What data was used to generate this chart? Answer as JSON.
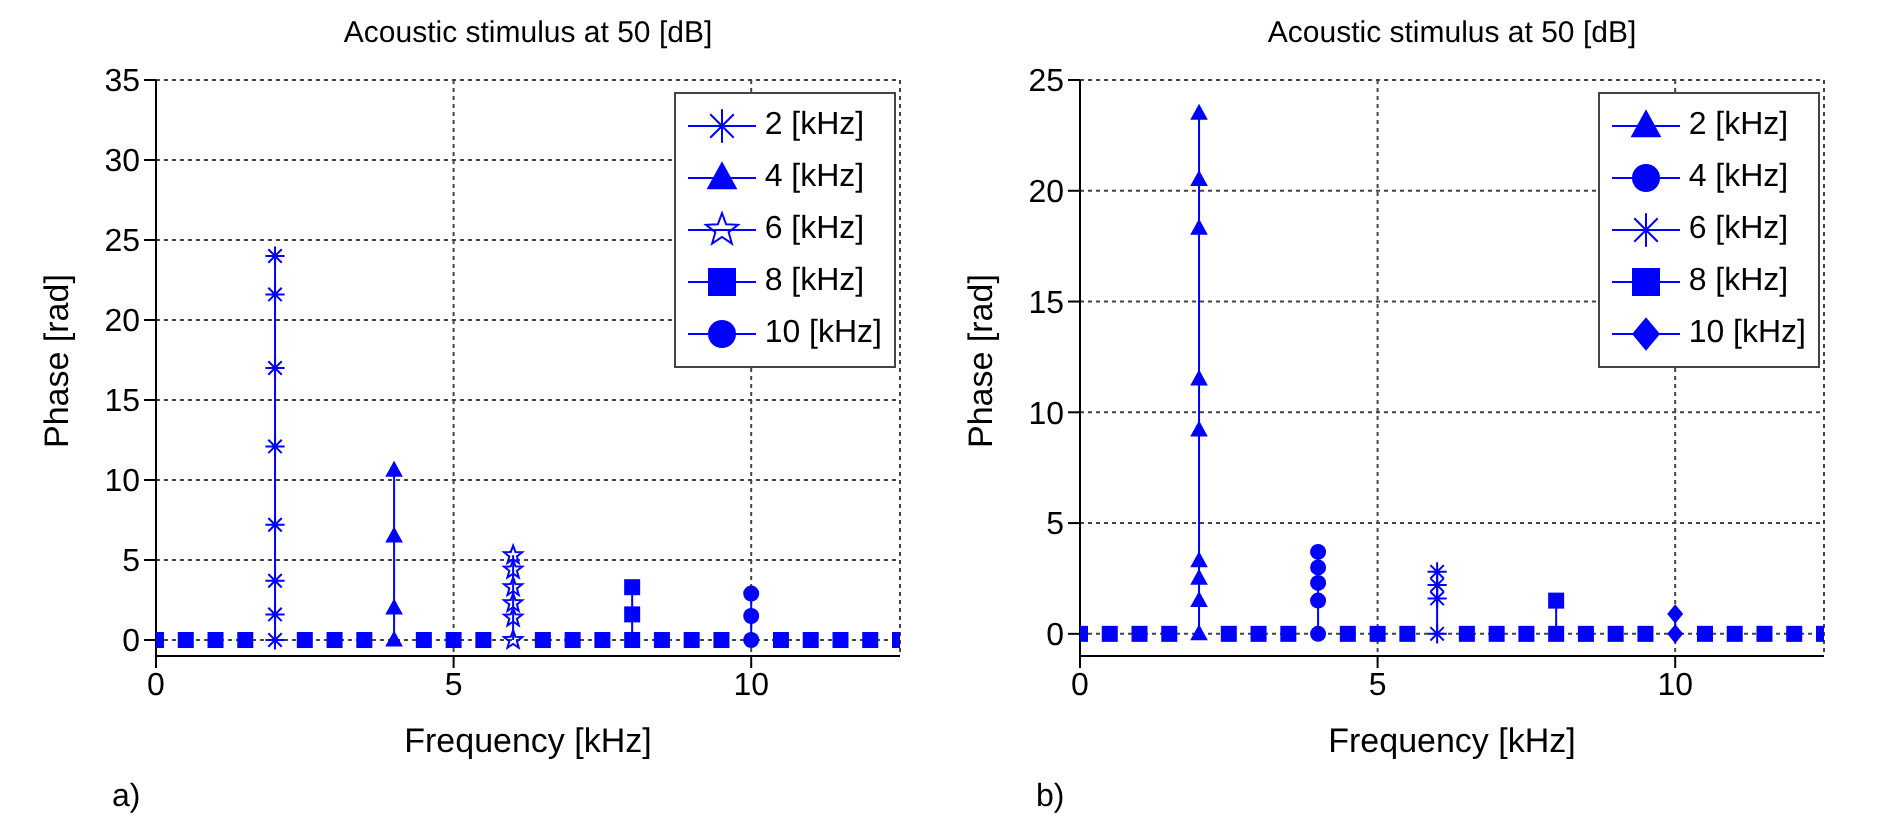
{
  "chart_data": [
    {
      "type": "line",
      "title": "Acoustic stimulus at 50 [dB]",
      "xlabel": "Frequency [kHz]",
      "ylabel": "Phase [rad]",
      "xlim": [
        0,
        12.5
      ],
      "xticks": [
        0,
        5,
        10
      ],
      "ylim": [
        -1,
        35
      ],
      "yticks": [
        0,
        5,
        10,
        15,
        20,
        25,
        30,
        35
      ],
      "grid": true,
      "legend": "top right",
      "annotations": [
        "a)"
      ],
      "series": [
        {
          "name": "2 [kHz]",
          "color": "#0000ff",
          "marker": "cross",
          "x": [
            2,
            2,
            2,
            2,
            2,
            2,
            2,
            2
          ],
          "values": [
            0,
            1.6,
            3.7,
            7.2,
            12.1,
            17,
            21.6,
            24
          ]
        },
        {
          "name": "4 [kHz]",
          "color": "#0000ff",
          "marker": "triangle",
          "x": [
            4,
            4,
            4,
            4
          ],
          "values": [
            0,
            2,
            6.5,
            10.6
          ]
        },
        {
          "name": "6 [kHz]",
          "color": "#0000ff",
          "marker": "star",
          "x": [
            6,
            6,
            6,
            6,
            6,
            6
          ],
          "values": [
            0,
            1.4,
            2.3,
            3.3,
            4.4,
            5.3
          ]
        },
        {
          "name": "8 [kHz]",
          "color": "#0000ff",
          "marker": "square",
          "x": [
            8,
            8,
            8
          ],
          "values": [
            0,
            1.6,
            3.3
          ]
        },
        {
          "name": "10 [kHz]",
          "color": "#0000ff",
          "marker": "circle",
          "x": [
            10,
            10,
            10
          ],
          "values": [
            0,
            1.5,
            2.9
          ]
        },
        {
          "type": "scatter",
          "color": "#0000ff",
          "marker": "square",
          "x": [
            0,
            0.5,
            1,
            1.5,
            2.5,
            3,
            3.5,
            4.5,
            5,
            5.5,
            6.5,
            7,
            7.5,
            8.5,
            9,
            9.5,
            10.5,
            11,
            11.5,
            12,
            12.5
          ],
          "values": [
            0,
            0,
            0,
            0,
            0,
            0,
            0,
            0,
            0,
            0,
            0,
            0,
            0,
            0,
            0,
            0,
            0,
            0,
            0,
            0,
            0
          ]
        }
      ]
    },
    {
      "type": "line",
      "title": "Acoustic stimulus at 50 [dB]",
      "xlabel": "Frequency [kHz]",
      "ylabel": "Phase [rad]",
      "xlim": [
        0,
        12.5
      ],
      "xticks": [
        0,
        5,
        10
      ],
      "ylim": [
        -1,
        25
      ],
      "yticks": [
        0,
        5,
        10,
        15,
        20,
        25
      ],
      "grid": true,
      "legend": "top right",
      "annotations": [
        "b)"
      ],
      "series": [
        {
          "name": "2 [kHz]",
          "color": "#0000ff",
          "marker": "triangle",
          "x": [
            2,
            2,
            2,
            2,
            2,
            2,
            2,
            2,
            2
          ],
          "values": [
            0,
            1.5,
            2.5,
            3.3,
            9.2,
            11.5,
            18.3,
            20.5,
            23.5
          ]
        },
        {
          "name": "4 [kHz]",
          "color": "#0000ff",
          "marker": "circle",
          "x": [
            4,
            4,
            4,
            4,
            4
          ],
          "values": [
            0,
            1.5,
            2.3,
            3,
            3.7
          ]
        },
        {
          "name": "6 [kHz]",
          "color": "#0000ff",
          "marker": "cross",
          "x": [
            6,
            6,
            6,
            6
          ],
          "values": [
            0,
            1.6,
            2.2,
            2.8
          ]
        },
        {
          "name": "8 [kHz]",
          "color": "#0000ff",
          "marker": "square",
          "x": [
            8,
            8
          ],
          "values": [
            0,
            1.5
          ]
        },
        {
          "name": "10 [kHz]",
          "color": "#0000ff",
          "marker": "diamond",
          "x": [
            10,
            10
          ],
          "values": [
            0,
            0.9
          ]
        },
        {
          "type": "scatter",
          "color": "#0000ff",
          "marker": "square",
          "x": [
            0,
            0.5,
            1,
            1.5,
            2.5,
            3,
            3.5,
            4.5,
            5,
            5.5,
            6.5,
            7,
            7.5,
            8.5,
            9,
            9.5,
            10.5,
            11,
            11.5,
            12,
            12.5
          ],
          "values": [
            0,
            0,
            0,
            0,
            0,
            0,
            0,
            0,
            0,
            0,
            0,
            0,
            0,
            0,
            0,
            0,
            0,
            0,
            0,
            0,
            0
          ]
        }
      ]
    }
  ]
}
